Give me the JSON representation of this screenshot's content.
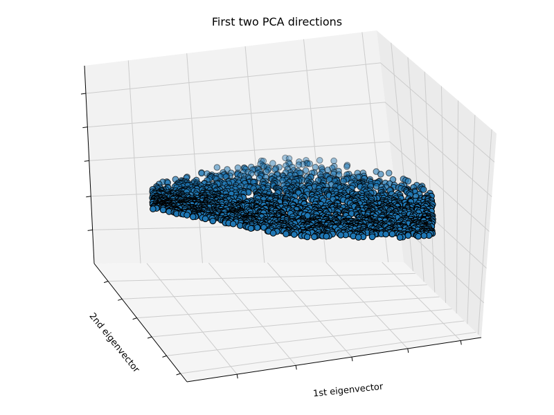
{
  "chart_data": {
    "type": "scatter",
    "projection": "3d",
    "title": "First two PCA directions",
    "xlabel": "1st eigenvector",
    "ylabel": "2nd eigenvector",
    "zlabel": "",
    "tick_labels_shown": false,
    "grid": true,
    "marker": "circle",
    "marker_color": "#1f77b4",
    "marker_edge_color": "#000000",
    "pane_color": "#f2f2f2",
    "gridline_color": "#cccccc"
  }
}
